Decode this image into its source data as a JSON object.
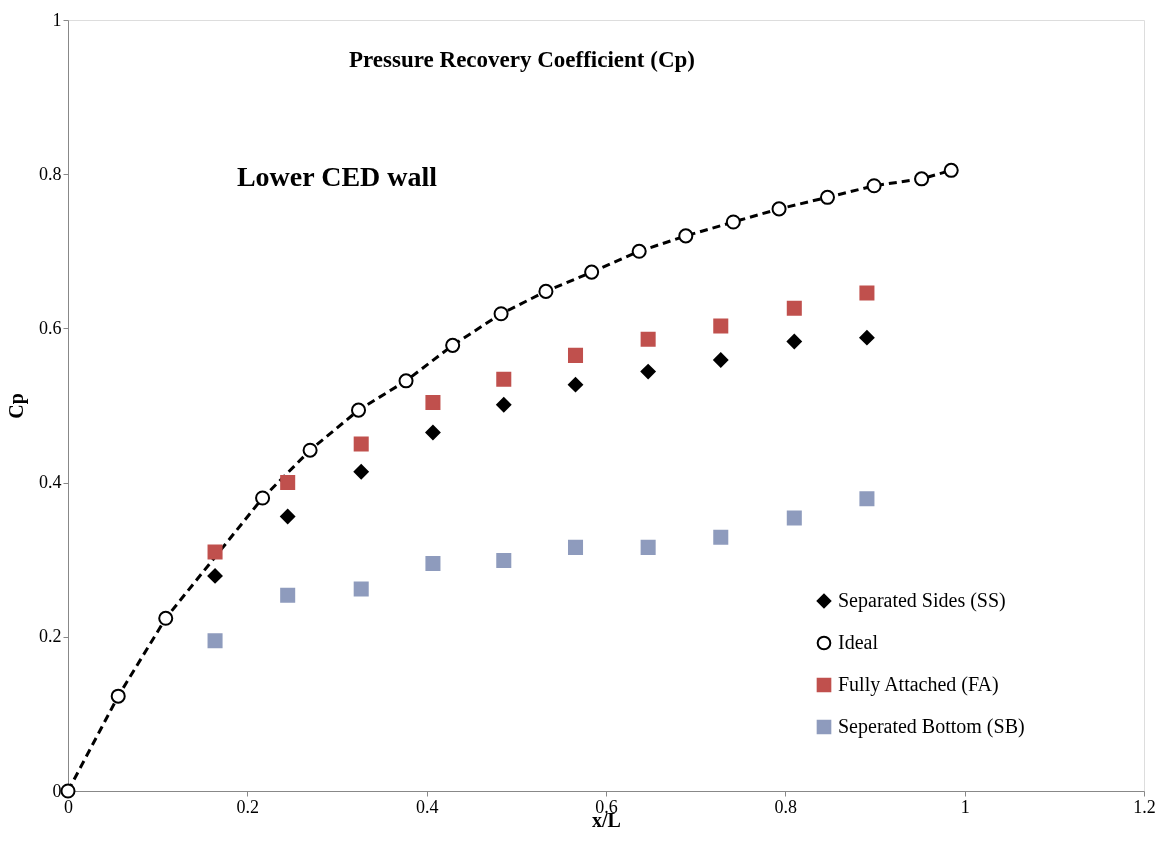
{
  "chart_data": {
    "type": "scatter",
    "title": "Pressure Recovery Coefficient (Cp)",
    "xlabel": "x/L",
    "ylabel": "Cp",
    "annotations": [
      "Lower CED wall"
    ],
    "xlim": [
      0,
      1.2
    ],
    "xticks": [
      0,
      0.2,
      0.4,
      0.6,
      0.8,
      1,
      1.2
    ],
    "ylim": [
      0,
      1
    ],
    "yticks": [
      0,
      0.2,
      0.4,
      0.6,
      0.8,
      1
    ],
    "grid": false,
    "legend": "bottom right",
    "series": [
      {
        "name": "Separated Sides (SS)",
        "type": "scatter",
        "marker": "diamond",
        "color": "#000000",
        "x": [
          0.164,
          0.245,
          0.327,
          0.407,
          0.486,
          0.566,
          0.647,
          0.728,
          0.81,
          0.891
        ],
        "values": [
          0.279,
          0.356,
          0.414,
          0.465,
          0.501,
          0.527,
          0.544,
          0.559,
          0.583,
          0.588
        ]
      },
      {
        "name": "Ideal",
        "type": "line",
        "marker": "circle",
        "line_style": "dashed",
        "color": "#000000",
        "x": [
          0,
          0.056,
          0.109,
          0.217,
          0.27,
          0.324,
          0.377,
          0.429,
          0.483,
          0.533,
          0.584,
          0.637,
          0.689,
          0.742,
          0.793,
          0.847,
          0.899,
          0.952,
          0.985
        ],
        "values": [
          0,
          0.123,
          0.224,
          0.38,
          0.442,
          0.494,
          0.532,
          0.578,
          0.619,
          0.648,
          0.673,
          0.7,
          0.72,
          0.738,
          0.755,
          0.77,
          0.785,
          0.794,
          0.805
        ]
      },
      {
        "name": "Fully Attached (FA)",
        "type": "scatter",
        "marker": "square",
        "color": "#c0504d",
        "x": [
          0.164,
          0.245,
          0.327,
          0.407,
          0.486,
          0.566,
          0.647,
          0.728,
          0.81,
          0.891
        ],
        "values": [
          0.31,
          0.4,
          0.45,
          0.504,
          0.534,
          0.565,
          0.586,
          0.603,
          0.626,
          0.646
        ]
      },
      {
        "name": "Seperated Bottom (SB)",
        "type": "scatter",
        "marker": "square",
        "color": "#8e9bbd",
        "x": [
          0.164,
          0.245,
          0.327,
          0.407,
          0.486,
          0.566,
          0.647,
          0.728,
          0.81,
          0.891
        ],
        "values": [
          0.195,
          0.254,
          0.262,
          0.295,
          0.299,
          0.316,
          0.316,
          0.329,
          0.354,
          0.379
        ]
      }
    ]
  }
}
